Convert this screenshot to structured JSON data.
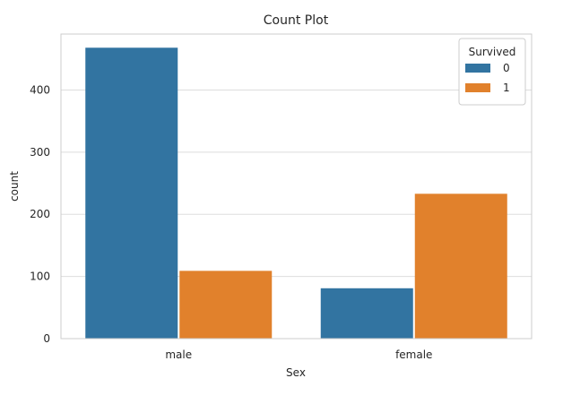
{
  "chart_data": {
    "type": "bar",
    "title": "Count Plot",
    "xlabel": "Sex",
    "ylabel": "count",
    "categories": [
      "male",
      "female"
    ],
    "series": [
      {
        "name": "0",
        "values": [
          468,
          81
        ]
      },
      {
        "name": "1",
        "values": [
          109,
          233
        ]
      }
    ],
    "ylim": [
      0,
      490
    ],
    "yticks": [
      "0",
      "100",
      "200",
      "300",
      "400"
    ],
    "grid": "horizontal",
    "legend": {
      "title": "Survived",
      "placement": "top-right"
    },
    "colors": {
      "0": "#3274a1",
      "1": "#e1812c"
    }
  }
}
